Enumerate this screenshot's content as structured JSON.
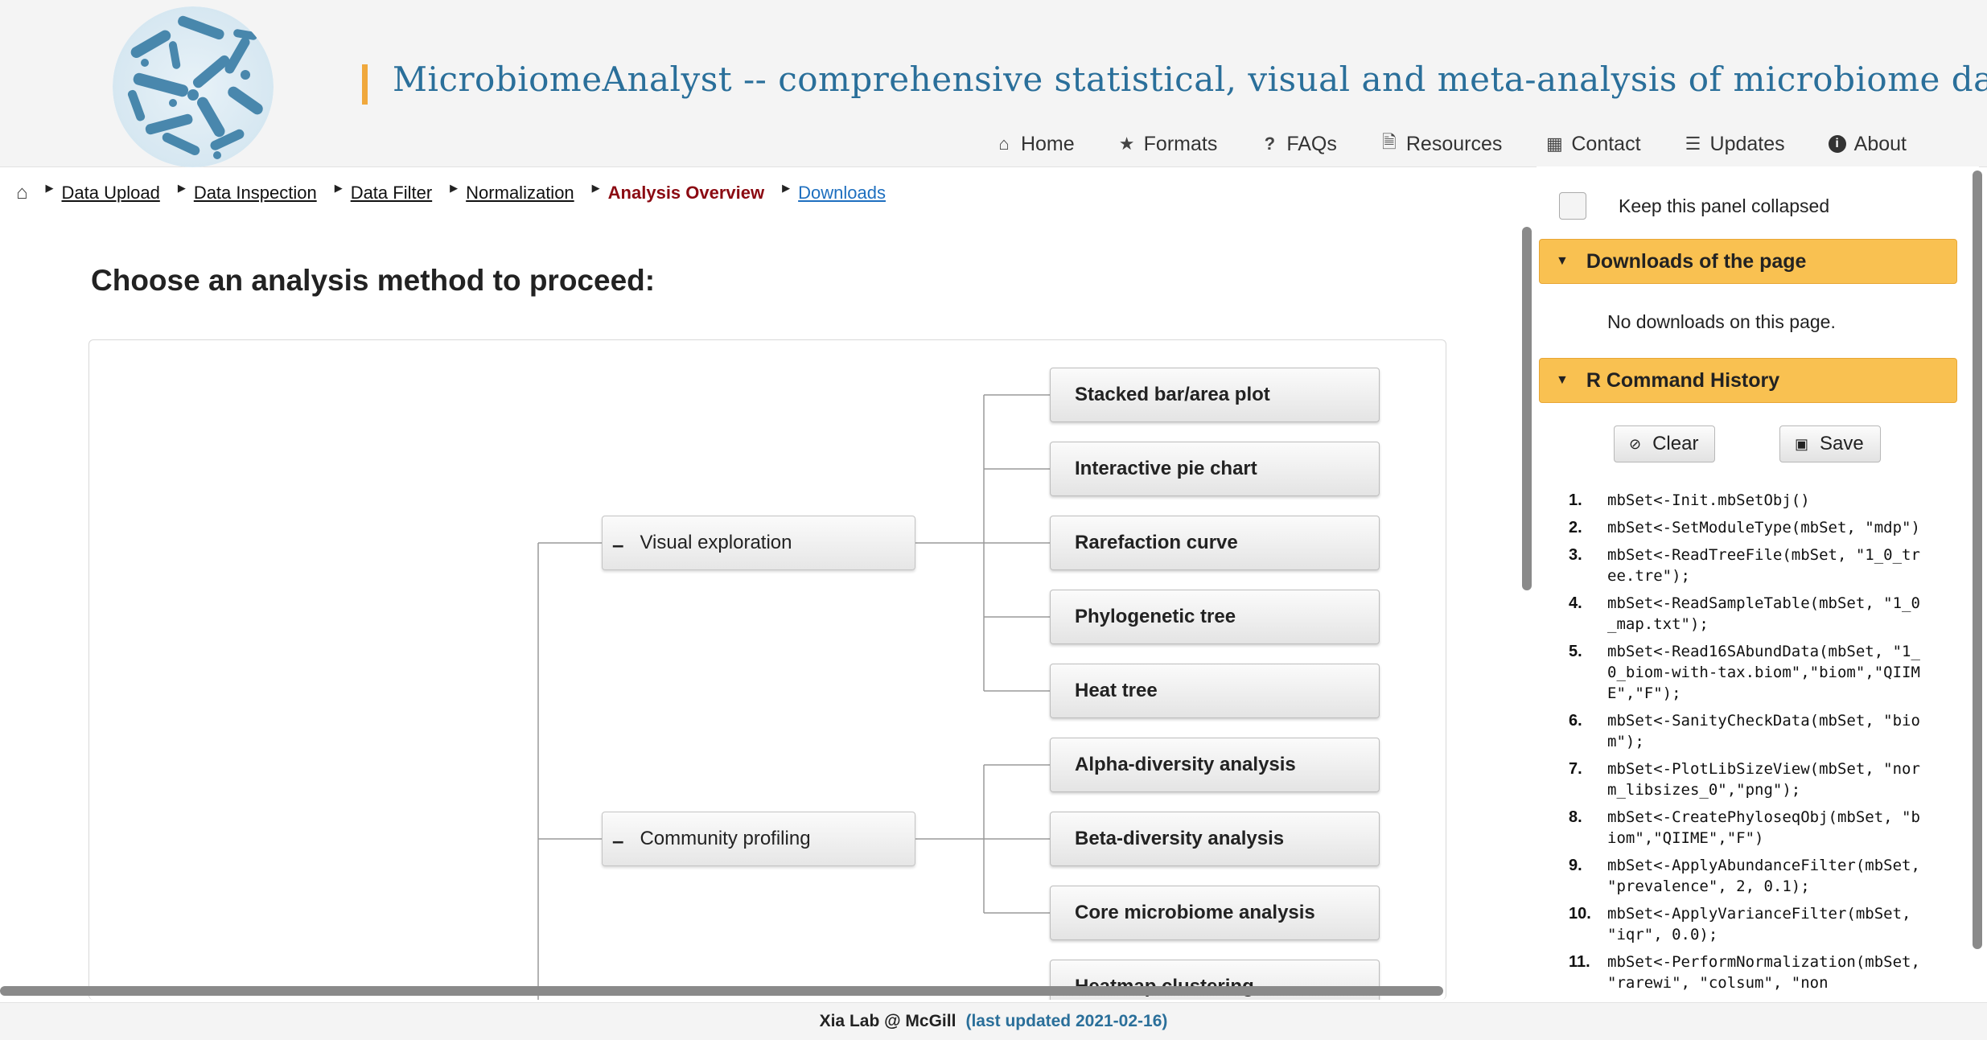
{
  "header": {
    "site_name": "MicrobiomeAnalyst",
    "tagline": " -- comprehensive statistical, visual and meta-analysis of microbiome data"
  },
  "nav": [
    {
      "label": "Home",
      "icon": "home-icon"
    },
    {
      "label": "Formats",
      "icon": "star-icon"
    },
    {
      "label": "FAQs",
      "icon": "question-icon"
    },
    {
      "label": "Resources",
      "icon": "document-icon"
    },
    {
      "label": "Contact",
      "icon": "contact-card-icon"
    },
    {
      "label": "Updates",
      "icon": "list-icon"
    },
    {
      "label": "About",
      "icon": "info-icon"
    }
  ],
  "breadcrumb": {
    "items": [
      "Data Upload",
      "Data Inspection",
      "Data Filter",
      "Normalization"
    ],
    "current": "Analysis Overview",
    "next": "Downloads"
  },
  "main": {
    "title": "Choose an analysis method to proceed:",
    "groups": [
      {
        "label": "Visual exploration",
        "collapse_symbol": "–"
      },
      {
        "label": "Community profiling",
        "collapse_symbol": "–"
      }
    ],
    "leaves": [
      "Stacked bar/area plot",
      "Interactive pie chart",
      "Rarefaction curve",
      "Phylogenetic tree",
      "Heat tree",
      "Alpha-diversity analysis",
      "Beta-diversity analysis",
      "Core microbiome analysis",
      "Heatmap clustering"
    ]
  },
  "sidebar": {
    "collapse_label": "Keep this panel collapsed",
    "downloads_header": "Downloads of the page",
    "no_downloads": "No downloads on this page.",
    "history_header": "R Command History",
    "clear_label": "Clear",
    "save_label": "Save",
    "history": [
      {
        "num": "1.",
        "code": "mbSet<-Init.mbSetObj()"
      },
      {
        "num": "2.",
        "code": "mbSet<-SetModuleType(mbSet, \"mdp\")"
      },
      {
        "num": "3.",
        "code": "mbSet<-ReadTreeFile(mbSet, \"1_0_tree.tre\");"
      },
      {
        "num": "4.",
        "code": "mbSet<-ReadSampleTable(mbSet, \"1_0_map.txt\");"
      },
      {
        "num": "5.",
        "code": "mbSet<-Read16SAbundData(mbSet, \"1_0_biom-with-tax.biom\",\"biom\",\"QIIME\",\"F\");"
      },
      {
        "num": "6.",
        "code": "mbSet<-SanityCheckData(mbSet, \"biom\");"
      },
      {
        "num": "7.",
        "code": "mbSet<-PlotLibSizeView(mbSet, \"norm_libsizes_0\",\"png\");"
      },
      {
        "num": "8.",
        "code": "mbSet<-CreatePhyloseqObj(mbSet, \"biom\",\"QIIME\",\"F\")"
      },
      {
        "num": "9.",
        "code": "mbSet<-ApplyAbundanceFilter(mbSet, \"prevalence\", 2, 0.1);"
      },
      {
        "num": "10.",
        "code": "mbSet<-ApplyVarianceFilter(mbSet, \"iqr\", 0.0);"
      },
      {
        "num": "11.",
        "code": "mbSet<-PerformNormalization(mbSet, \"rarewi\", \"colsum\", \"non"
      }
    ]
  },
  "footer": {
    "lab": "Xia Lab @ McGill",
    "updated": "(last updated 2021-02-16)"
  },
  "colors": {
    "accent_orange": "#f9c151",
    "title_blue": "#2a6f9a",
    "current_crumb": "#8b0a12",
    "link_blue": "#1e6fbf"
  }
}
